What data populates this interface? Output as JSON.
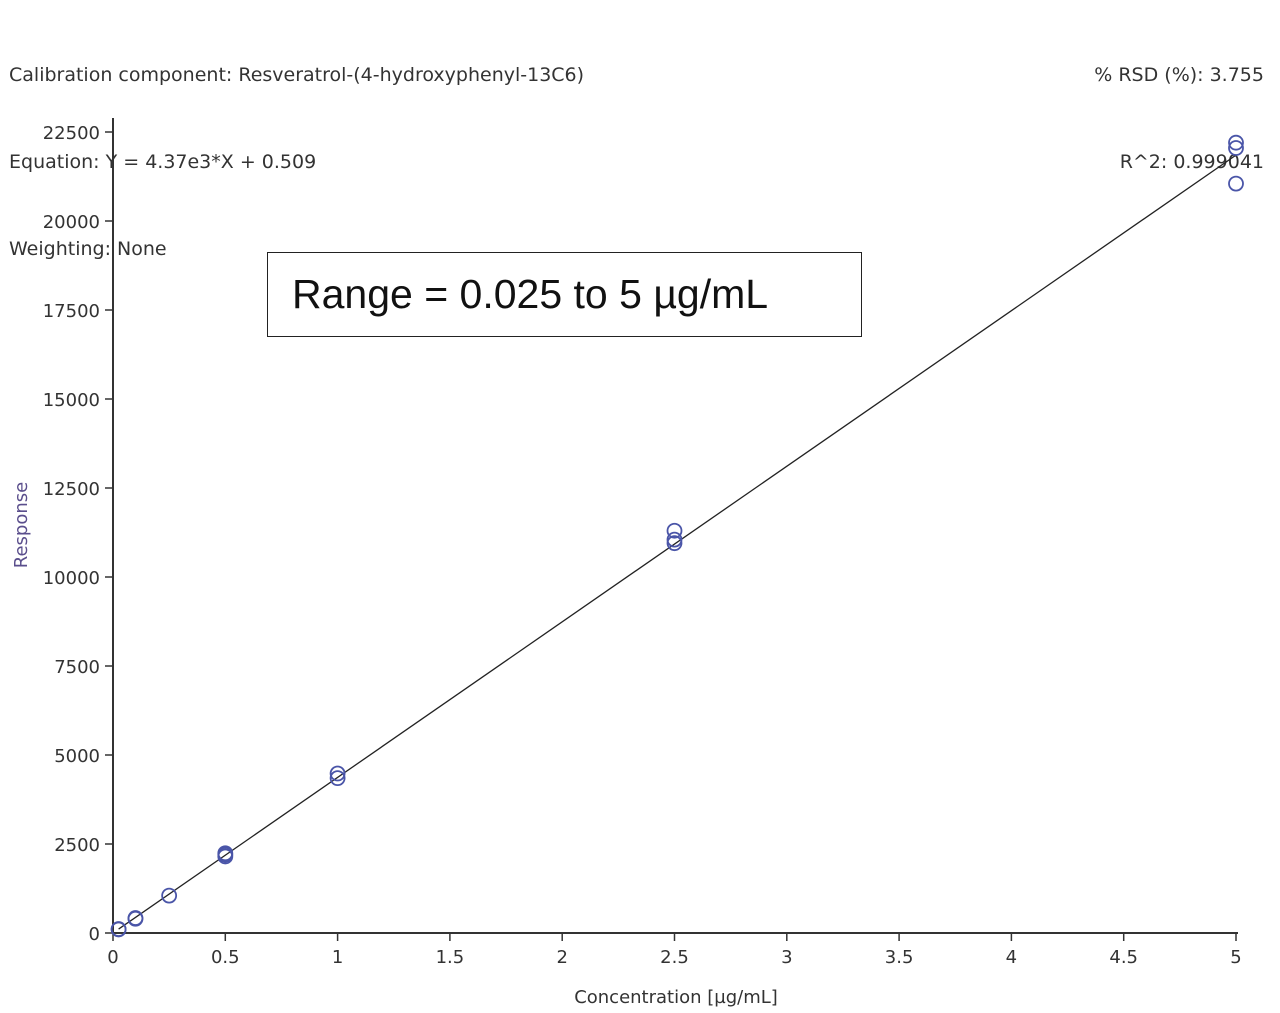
{
  "header": {
    "left_lines": [
      "Calibration component: Resveratrol-(4-hydroxyphenyl-13C6)",
      "Equation: Y = 4.37e3*X + 0.509",
      "Weighting: None"
    ],
    "right_lines": [
      "% RSD (%): 3.755",
      "R^2: 0.999041"
    ]
  },
  "annotation": {
    "text": "Range = 0.025 to 5 µg/mL"
  },
  "chart_data": {
    "type": "scatter",
    "xlabel": "Concentration [µg/mL]",
    "ylabel": "Response",
    "xlim": [
      0,
      5
    ],
    "ylim": [
      0,
      22500
    ],
    "x_ticks": [
      "0",
      "0.5",
      "1",
      "1.5",
      "2",
      "2.5",
      "3",
      "3.5",
      "4",
      "4.5",
      "5"
    ],
    "y_ticks": [
      "0",
      "2500",
      "5000",
      "7500",
      "10000",
      "12500",
      "15000",
      "17500",
      "20000",
      "22500"
    ],
    "fit_line": {
      "slope": 4370,
      "intercept": 0.509,
      "x_range": [
        0.025,
        5
      ]
    },
    "points": [
      {
        "x": 0.025,
        "y": 100
      },
      {
        "x": 0.025,
        "y": 110
      },
      {
        "x": 0.1,
        "y": 400
      },
      {
        "x": 0.1,
        "y": 420
      },
      {
        "x": 0.25,
        "y": 1050
      },
      {
        "x": 0.5,
        "y": 2150
      },
      {
        "x": 0.5,
        "y": 2200
      },
      {
        "x": 0.5,
        "y": 2240
      },
      {
        "x": 1,
        "y": 4350
      },
      {
        "x": 1,
        "y": 4480
      },
      {
        "x": 2.5,
        "y": 10950
      },
      {
        "x": 2.5,
        "y": 11050
      },
      {
        "x": 2.5,
        "y": 11300
      },
      {
        "x": 5,
        "y": 21050
      },
      {
        "x": 5,
        "y": 22050
      },
      {
        "x": 5,
        "y": 22200
      }
    ],
    "colors": {
      "points": "#4a55a8",
      "fit_line": "#222222",
      "axis": "#333333",
      "ylabel": "#5a4e8c"
    }
  }
}
